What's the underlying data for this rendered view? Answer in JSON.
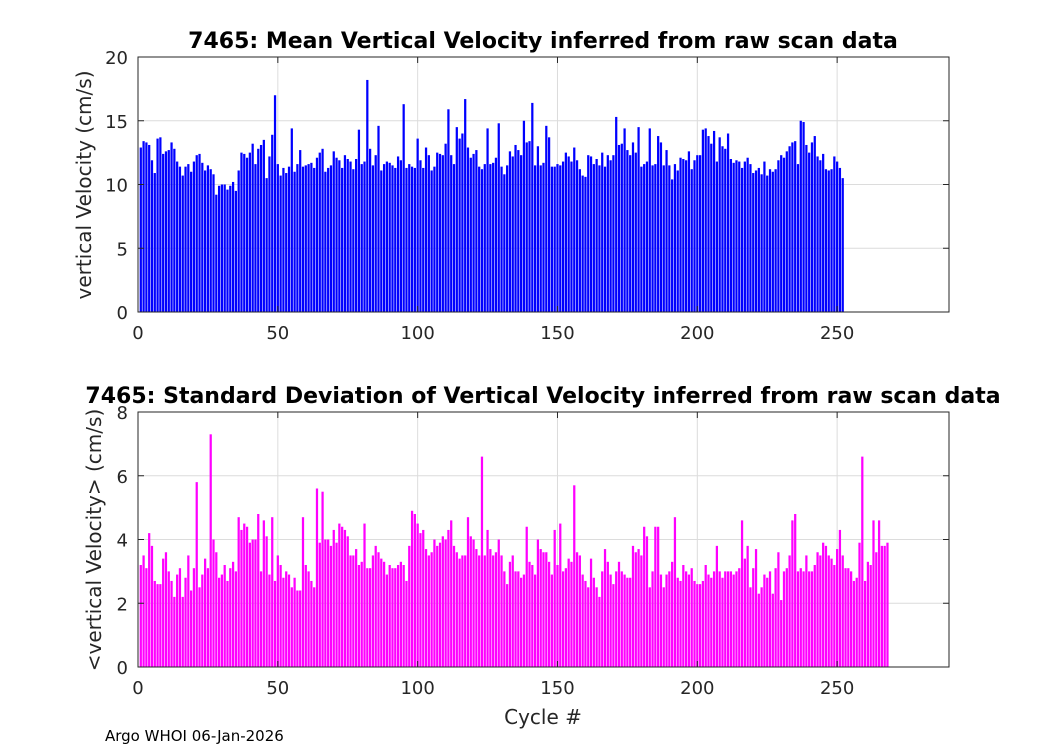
{
  "footer_text": "Argo WHOI 06-Jan-2026",
  "chart_data": [
    {
      "type": "bar",
      "title": "7465: Mean Vertical Velocity inferred from raw scan data",
      "xlabel": "",
      "ylabel": "vertical Velocity (cm/s)",
      "xlim": [
        0,
        290
      ],
      "ylim": [
        0,
        20
      ],
      "xticks": [
        0,
        50,
        100,
        150,
        200,
        250
      ],
      "yticks": [
        0,
        5,
        10,
        15,
        20
      ],
      "grid": true,
      "color": "#0000ff",
      "x_start": 1,
      "values": [
        12.9,
        13.4,
        13.3,
        13.1,
        11.9,
        10.9,
        13.6,
        13.7,
        12.4,
        12.6,
        12.7,
        13.3,
        12.8,
        11.8,
        11.4,
        10.7,
        11.4,
        11.6,
        11.0,
        11.8,
        12.3,
        12.4,
        11.7,
        11.1,
        11.5,
        11.2,
        10.8,
        9.2,
        9.9,
        10.0,
        10.0,
        9.6,
        9.9,
        10.2,
        9.5,
        11.1,
        12.5,
        12.4,
        12.1,
        12.5,
        13.2,
        11.6,
        12.8,
        13.1,
        13.5,
        10.5,
        12.2,
        13.9,
        17.0,
        11.6,
        10.7,
        11.3,
        10.9,
        11.4,
        14.4,
        11.0,
        11.6,
        12.7,
        11.4,
        11.5,
        11.6,
        11.7,
        11.3,
        12.1,
        12.5,
        12.8,
        11.0,
        11.3,
        11.5,
        12.6,
        12.1,
        11.9,
        11.3,
        12.3,
        12.0,
        11.8,
        11.2,
        12.0,
        14.3,
        11.6,
        11.8,
        18.2,
        12.8,
        11.5,
        12.3,
        14.6,
        11.1,
        11.6,
        11.8,
        11.7,
        11.5,
        11.3,
        12.2,
        11.9,
        16.3,
        11.3,
        11.6,
        11.4,
        11.3,
        13.6,
        11.9,
        11.3,
        12.9,
        12.3,
        11.1,
        11.4,
        12.5,
        12.4,
        12.3,
        13.2,
        15.9,
        12.3,
        11.6,
        14.5,
        13.6,
        14.0,
        16.7,
        12.9,
        12.1,
        12.4,
        12.7,
        11.4,
        11.2,
        11.6,
        14.4,
        11.6,
        11.7,
        12.1,
        14.8,
        11.4,
        10.8,
        11.5,
        12.6,
        12.2,
        13.1,
        12.7,
        12.3,
        15.0,
        13.3,
        13.4,
        16.4,
        11.5,
        13.0,
        11.5,
        11.7,
        14.6,
        13.7,
        11.4,
        11.4,
        11.6,
        11.5,
        11.8,
        12.5,
        12.2,
        11.8,
        12.9,
        11.9,
        11.2,
        10.7,
        10.6,
        12.3,
        12.2,
        11.6,
        12.0,
        11.5,
        12.5,
        11.4,
        12.3,
        11.9,
        12.3,
        15.3,
        13.1,
        13.2,
        14.4,
        12.7,
        12.3,
        13.3,
        12.5,
        14.5,
        11.4,
        11.6,
        11.8,
        14.4,
        11.5,
        11.6,
        13.8,
        13.3,
        11.5,
        12.7,
        11.5,
        10.4,
        11.6,
        11.1,
        12.1,
        12.0,
        11.9,
        12.6,
        11.2,
        11.9,
        12.3,
        12.3,
        14.3,
        14.4,
        13.8,
        13.2,
        14.2,
        11.8,
        13.7,
        13.0,
        12.8,
        14.0,
        12.0,
        11.7,
        11.9,
        11.8,
        11.3,
        11.8,
        12.1,
        11.6,
        10.9,
        11.1,
        11.3,
        10.8,
        11.8,
        10.7,
        11.2,
        11.0,
        11.2,
        11.9,
        12.3,
        12.1,
        12.6,
        13.0,
        13.3,
        13.4,
        11.6,
        15.0,
        14.9,
        13.1,
        12.5,
        13.3,
        13.8,
        12.2,
        11.9,
        12.4,
        11.2,
        11.1,
        11.2,
        12.2,
        11.8,
        11.3,
        10.5
      ]
    },
    {
      "type": "bar",
      "title": "7465: Standard Deviation of Vertical Velocity inferred from raw scan data",
      "xlabel": "Cycle #",
      "ylabel": "<vertical Velocity> (cm/s)",
      "xlim": [
        0,
        290
      ],
      "ylim": [
        0,
        8
      ],
      "xticks": [
        0,
        50,
        100,
        150,
        200,
        250
      ],
      "yticks": [
        0,
        2,
        4,
        6,
        8
      ],
      "grid": true,
      "color": "#ff00ff",
      "x_start": 1,
      "values": [
        3.2,
        3.5,
        3.1,
        4.2,
        3.8,
        2.7,
        2.6,
        2.6,
        3.4,
        3.6,
        3.0,
        2.7,
        2.2,
        2.9,
        3.1,
        2.2,
        2.8,
        3.5,
        2.4,
        3.1,
        5.8,
        2.5,
        2.9,
        3.4,
        3.1,
        7.3,
        4.0,
        3.6,
        2.8,
        2.9,
        3.2,
        2.7,
        3.1,
        3.3,
        3.0,
        4.7,
        4.3,
        4.5,
        4.4,
        3.9,
        4.0,
        4.0,
        4.8,
        3.0,
        4.6,
        4.1,
        2.9,
        4.7,
        2.7,
        3.5,
        3.2,
        2.8,
        3.0,
        2.9,
        2.5,
        2.8,
        2.4,
        2.4,
        4.7,
        3.2,
        3.0,
        2.7,
        2.5,
        5.6,
        3.9,
        5.5,
        4.0,
        4.0,
        3.8,
        4.3,
        3.9,
        4.5,
        4.4,
        4.3,
        4.1,
        3.5,
        3.5,
        3.7,
        3.2,
        3.3,
        4.5,
        3.1,
        3.1,
        3.5,
        3.8,
        3.6,
        3.4,
        3.3,
        2.9,
        3.2,
        3.1,
        3.1,
        3.2,
        3.3,
        3.2,
        2.7,
        3.8,
        4.9,
        4.8,
        4.5,
        4.2,
        4.3,
        3.7,
        3.5,
        3.6,
        4.0,
        3.8,
        3.9,
        4.1,
        4.0,
        4.3,
        4.6,
        3.8,
        3.6,
        3.4,
        3.5,
        3.5,
        4.7,
        4.1,
        4.0,
        3.7,
        3.5,
        6.6,
        3.5,
        4.3,
        3.7,
        3.5,
        3.6,
        4.0,
        3.5,
        3.0,
        2.6,
        3.3,
        3.5,
        3.0,
        3.0,
        2.8,
        2.9,
        4.4,
        3.3,
        3.2,
        2.9,
        4.0,
        3.7,
        3.6,
        3.6,
        3.3,
        2.9,
        4.3,
        3.2,
        4.5,
        3.0,
        3.1,
        3.4,
        3.3,
        5.7,
        3.6,
        3.5,
        2.9,
        2.7,
        2.5,
        3.4,
        2.8,
        2.5,
        2.2,
        3.0,
        3.7,
        3.3,
        2.9,
        2.6,
        3.0,
        3.3,
        3.0,
        2.9,
        2.8,
        2.8,
        3.8,
        3.6,
        3.7,
        3.5,
        4.4,
        4.1,
        2.5,
        3.0,
        4.4,
        4.4,
        2.9,
        2.5,
        2.9,
        3.0,
        3.3,
        4.7,
        2.8,
        2.7,
        3.2,
        3.0,
        2.9,
        3.1,
        2.7,
        2.6,
        2.6,
        2.7,
        3.2,
        2.9,
        2.8,
        3.0,
        3.8,
        3.0,
        2.8,
        3.0,
        3.0,
        3.0,
        2.9,
        3.0,
        3.1,
        4.6,
        3.4,
        3.8,
        2.5,
        3.1,
        3.7,
        2.3,
        2.5,
        2.9,
        2.8,
        3.0,
        2.3,
        3.1,
        3.6,
        2.1,
        3.0,
        3.1,
        3.5,
        4.6,
        4.8,
        3.0,
        3.1,
        3.0,
        3.5,
        3.0,
        3.0,
        3.2,
        3.6,
        3.5,
        3.9,
        3.8,
        3.5,
        3.4,
        3.2,
        3.7,
        4.3,
        3.5,
        3.1,
        3.1,
        3.0,
        2.7,
        2.8,
        3.9,
        6.6,
        2.7,
        3.3,
        3.2,
        4.6,
        3.6,
        4.6,
        3.8,
        3.8,
        3.9
      ]
    }
  ]
}
